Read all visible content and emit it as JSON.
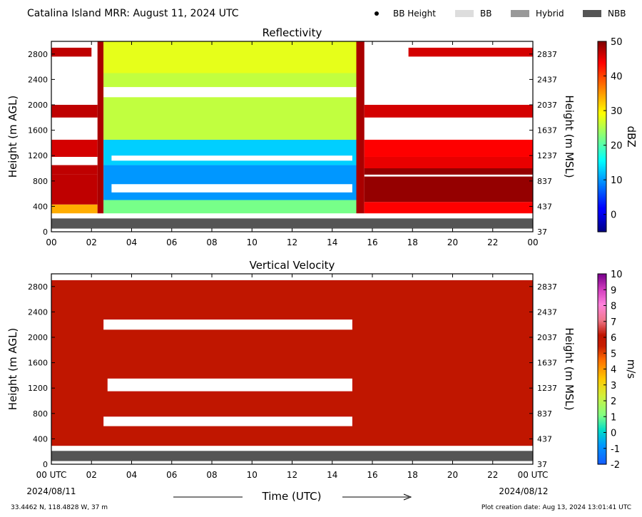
{
  "header": {
    "title": "Catalina Island MRR:  August 11, 2024 UTC",
    "legend": [
      {
        "label": "BB Height",
        "marker": "dot",
        "color": "#000000"
      },
      {
        "label": "BB",
        "marker": "box",
        "color": "#dddddd"
      },
      {
        "label": "Hybrid",
        "marker": "box",
        "color": "#999999"
      },
      {
        "label": "NBB",
        "marker": "box",
        "color": "#555555"
      }
    ]
  },
  "footer": {
    "date_left": "2024/08/11",
    "date_right": "2024/08/12",
    "xlabel": "Time (UTC)",
    "location": "33.4462 N, 118.4828 W, 37 m",
    "creation": "Plot creation date: Aug 13, 2024 13:01:41 UTC"
  },
  "chart_data": [
    {
      "type": "heatmap",
      "title": "Reflectivity",
      "ylabel_left": "Height (m AGL)",
      "ylabel_right": "Height (m MSL)",
      "colorbar_label": "dBZ",
      "xlim": [
        0,
        24
      ],
      "ylim": [
        0,
        3000
      ],
      "clim": [
        -5,
        50
      ],
      "colorbar_ticks": [
        "0",
        "10",
        "20",
        "30",
        "40",
        "50"
      ],
      "yticks_left": [
        "0",
        "400",
        "800",
        "1200",
        "1600",
        "2000",
        "2400",
        "2800"
      ],
      "yticks_right": [
        "37",
        "437",
        "837",
        "1237",
        "1637",
        "2037",
        "2437",
        "2837"
      ],
      "xticks": [
        "00",
        "02",
        "04",
        "06",
        "08",
        "10",
        "12",
        "14",
        "16",
        "18",
        "20",
        "22",
        "00"
      ],
      "nbb_band_height_range": [
        50,
        210
      ],
      "blocks": [
        {
          "t0": 0,
          "t1": 2.3,
          "h0": 290,
          "h1": 430,
          "value": 34
        },
        {
          "t0": 0,
          "t1": 2.3,
          "h0": 430,
          "h1": 900,
          "value": 47
        },
        {
          "t0": 0,
          "t1": 2.3,
          "h0": 900,
          "h1": 1050,
          "value": 47
        },
        {
          "t0": 0,
          "t1": 2.3,
          "h0": 1180,
          "h1": 1450,
          "value": 46
        },
        {
          "t0": 0,
          "t1": 2.3,
          "h0": 1800,
          "h1": 2000,
          "value": 47
        },
        {
          "t0": 0,
          "t1": 2.0,
          "h0": 2760,
          "h1": 2900,
          "value": 47
        },
        {
          "t0": 2.3,
          "t1": 2.6,
          "h0": 290,
          "h1": 3000,
          "value": 48
        },
        {
          "t0": 2.6,
          "t1": 15.2,
          "h0": 290,
          "h1": 500,
          "value": 22
        },
        {
          "t0": 2.6,
          "t1": 15.2,
          "h0": 500,
          "h1": 1050,
          "value": 10
        },
        {
          "t0": 2.6,
          "t1": 15.2,
          "h0": 1050,
          "h1": 1450,
          "value": 13
        },
        {
          "t0": 2.6,
          "t1": 15.2,
          "h0": 1450,
          "h1": 2500,
          "value": 26
        },
        {
          "t0": 2.6,
          "t1": 15.2,
          "h0": 2500,
          "h1": 3000,
          "value": 28
        },
        {
          "t0": 15.2,
          "t1": 15.6,
          "h0": 290,
          "h1": 3000,
          "value": 48
        },
        {
          "t0": 15.6,
          "t1": 24,
          "h0": 290,
          "h1": 470,
          "value": 44
        },
        {
          "t0": 15.6,
          "t1": 24,
          "h0": 470,
          "h1": 1000,
          "value": 49
        },
        {
          "t0": 15.6,
          "t1": 24,
          "h0": 1000,
          "h1": 1180,
          "value": 45
        },
        {
          "t0": 15.6,
          "t1": 24,
          "h0": 1180,
          "h1": 1450,
          "value": 44
        },
        {
          "t0": 15.6,
          "t1": 24,
          "h0": 1800,
          "h1": 2000,
          "value": 46
        },
        {
          "t0": 17.8,
          "t1": 24,
          "h0": 2760,
          "h1": 2900,
          "value": 46
        }
      ],
      "gaps": [
        {
          "t0": 2.6,
          "t1": 15.2,
          "h0": 2120,
          "h1": 2280
        },
        {
          "t0": 3.0,
          "t1": 15.0,
          "h0": 620,
          "h1": 750
        },
        {
          "t0": 3.0,
          "t1": 15.0,
          "h0": 1120,
          "h1": 1200
        },
        {
          "t0": 15.6,
          "t1": 24,
          "h0": 870,
          "h1": 900
        }
      ]
    },
    {
      "type": "heatmap",
      "title": "Vertical Velocity",
      "ylabel_left": "Height (m AGL)",
      "ylabel_right": "Height (m MSL)",
      "colorbar_label": "m/s",
      "xlim": [
        0,
        24
      ],
      "ylim": [
        0,
        3000
      ],
      "clim": [
        -2,
        10
      ],
      "colorbar_ticks": [
        "-2",
        "-1",
        "0",
        "1",
        "2",
        "3",
        "4",
        "5",
        "6",
        "7",
        "8",
        "9",
        "10"
      ],
      "yticks_left": [
        "0",
        "400",
        "800",
        "1200",
        "1600",
        "2000",
        "2400",
        "2800"
      ],
      "yticks_right": [
        "37",
        "437",
        "837",
        "1237",
        "1637",
        "2037",
        "2437",
        "2837"
      ],
      "xticks": [
        "00 UTC",
        "02",
        "04",
        "06",
        "08",
        "10",
        "12",
        "14",
        "16",
        "18",
        "20",
        "22",
        "00 UTC"
      ],
      "nbb_band_height_range": [
        50,
        210
      ],
      "blocks": [
        {
          "t0": 0,
          "t1": 24,
          "h0": 290,
          "h1": 2900,
          "value": 6
        }
      ],
      "gaps": [
        {
          "t0": 2.6,
          "t1": 15.0,
          "h0": 2120,
          "h1": 2280
        },
        {
          "t0": 2.8,
          "t1": 15.0,
          "h0": 1150,
          "h1": 1350
        },
        {
          "t0": 2.6,
          "t1": 15.0,
          "h0": 600,
          "h1": 750
        }
      ]
    }
  ]
}
